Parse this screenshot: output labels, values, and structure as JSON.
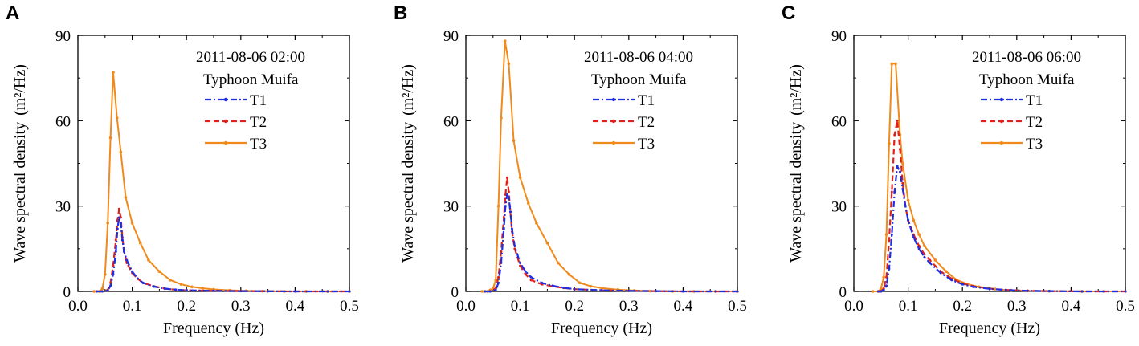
{
  "chart_data": [
    {
      "type": "line",
      "panel": "A",
      "annotation_lines": [
        "2011-08-06 02:00",
        "Typhoon Muifa"
      ],
      "xlabel": "Frequency (Hz)",
      "ylabel": "Wave spectral density",
      "ylabel_unit": "(m²/Hz)",
      "xlim": [
        0,
        0.5
      ],
      "ylim": [
        0,
        90
      ],
      "xticks": [
        0.0,
        0.1,
        0.2,
        0.3,
        0.4,
        0.5
      ],
      "xtick_labels": [
        "0.0",
        "0.1",
        "0.2",
        "0.3",
        "0.4",
        "0.5"
      ],
      "yticks": [
        0,
        30,
        60,
        90
      ],
      "ytick_labels": [
        "0",
        "30",
        "60",
        "90"
      ],
      "legend": [
        "T1",
        "T2",
        "T3"
      ],
      "series": [
        {
          "name": "T1",
          "color": "#1f2fe0",
          "style": "dashdot",
          "x": [
            0.035,
            0.045,
            0.055,
            0.06,
            0.065,
            0.07,
            0.073,
            0.076,
            0.079,
            0.082,
            0.085,
            0.09,
            0.1,
            0.11,
            0.12,
            0.14,
            0.16,
            0.18,
            0.2,
            0.25,
            0.3,
            0.35,
            0.4,
            0.46,
            0.5
          ],
          "values": [
            0,
            0,
            0.3,
            2,
            6,
            14,
            22,
            26,
            24,
            18,
            14,
            11,
            7,
            4.5,
            3,
            1.7,
            1,
            0.6,
            0.4,
            0.2,
            0.1,
            0.05,
            0,
            0,
            0
          ]
        },
        {
          "name": "T2",
          "color": "#e0201a",
          "style": "dashed",
          "x": [
            0.035,
            0.045,
            0.055,
            0.06,
            0.065,
            0.07,
            0.073,
            0.076,
            0.079,
            0.082,
            0.085,
            0.09,
            0.1,
            0.11,
            0.12,
            0.14,
            0.16,
            0.18,
            0.2,
            0.25,
            0.3,
            0.35,
            0.4,
            0.46,
            0.5
          ],
          "values": [
            0,
            0,
            0.5,
            3,
            9,
            18,
            25,
            29,
            26,
            19,
            14,
            10,
            6.5,
            4.5,
            3,
            1.8,
            1,
            0.6,
            0.4,
            0.2,
            0.1,
            0.05,
            0,
            0,
            0
          ]
        },
        {
          "name": "T3",
          "color": "#f08a1c",
          "style": "solid-dot",
          "x": [
            0.03,
            0.04,
            0.045,
            0.05,
            0.055,
            0.06,
            0.065,
            0.072,
            0.079,
            0.088,
            0.1,
            0.115,
            0.13,
            0.15,
            0.17,
            0.19,
            0.21,
            0.23,
            0.25,
            0.28,
            0.31,
            0.34,
            0.38,
            0.42,
            0.46,
            0.5
          ],
          "values": [
            0,
            0,
            1,
            6,
            24,
            54,
            77,
            61,
            49,
            33,
            24,
            17,
            11,
            7,
            4,
            2.5,
            1.6,
            1.1,
            0.7,
            0.4,
            0.2,
            0.1,
            0,
            0,
            0,
            0
          ]
        }
      ]
    },
    {
      "type": "line",
      "panel": "B",
      "annotation_lines": [
        "2011-08-06 04:00",
        "Typhoon Muifa"
      ],
      "xlabel": "Frequency (Hz)",
      "ylabel": "Wave spectral density",
      "ylabel_unit": "(m²/Hz)",
      "xlim": [
        0,
        0.5
      ],
      "ylim": [
        0,
        90
      ],
      "xticks": [
        0.0,
        0.1,
        0.2,
        0.3,
        0.4,
        0.5
      ],
      "xtick_labels": [
        "0.0",
        "0.1",
        "0.2",
        "0.3",
        "0.4",
        "0.5"
      ],
      "yticks": [
        0,
        30,
        60,
        90
      ],
      "ytick_labels": [
        "0",
        "30",
        "60",
        "90"
      ],
      "legend": [
        "T1",
        "T2",
        "T3"
      ],
      "series": [
        {
          "name": "T1",
          "color": "#1f2fe0",
          "style": "dashdot",
          "x": [
            0.035,
            0.045,
            0.055,
            0.06,
            0.065,
            0.07,
            0.073,
            0.076,
            0.079,
            0.082,
            0.085,
            0.09,
            0.1,
            0.11,
            0.12,
            0.14,
            0.16,
            0.18,
            0.2,
            0.25,
            0.3,
            0.35,
            0.4,
            0.46,
            0.5
          ],
          "values": [
            0,
            0,
            0.5,
            3,
            10,
            22,
            30,
            34,
            33,
            28,
            22,
            16,
            10,
            7,
            5,
            3,
            2,
            1.3,
            0.8,
            0.4,
            0.2,
            0.1,
            0,
            0,
            0
          ]
        },
        {
          "name": "T2",
          "color": "#e0201a",
          "style": "dashed",
          "x": [
            0.035,
            0.045,
            0.055,
            0.06,
            0.065,
            0.07,
            0.073,
            0.076,
            0.079,
            0.082,
            0.085,
            0.09,
            0.1,
            0.11,
            0.12,
            0.14,
            0.16,
            0.18,
            0.2,
            0.25,
            0.3,
            0.35,
            0.4,
            0.46,
            0.5
          ],
          "values": [
            0,
            0,
            1,
            5,
            14,
            26,
            34,
            40,
            35,
            28,
            21,
            15,
            9,
            6,
            4,
            2.5,
            1.8,
            1.2,
            0.8,
            0.4,
            0.2,
            0.1,
            0,
            0,
            0
          ]
        },
        {
          "name": "T3",
          "color": "#f08a1c",
          "style": "solid-dot",
          "x": [
            0.03,
            0.04,
            0.045,
            0.05,
            0.055,
            0.06,
            0.065,
            0.072,
            0.079,
            0.088,
            0.1,
            0.115,
            0.13,
            0.15,
            0.17,
            0.19,
            0.21,
            0.23,
            0.25,
            0.28,
            0.31,
            0.34,
            0.38,
            0.42,
            0.46,
            0.5
          ],
          "values": [
            0,
            0,
            0.5,
            1,
            4,
            30,
            61,
            88,
            80,
            53,
            40,
            31,
            24,
            17,
            10,
            6,
            3,
            1.8,
            1.2,
            0.6,
            0.3,
            0.1,
            0,
            0,
            0,
            0
          ]
        }
      ]
    },
    {
      "type": "line",
      "panel": "C",
      "annotation_lines": [
        "2011-08-06 06:00",
        "Typhoon Muifa"
      ],
      "xlabel": "Frequency (Hz)",
      "ylabel": "Wave spectral density",
      "ylabel_unit": "(m²/Hz)",
      "xlim": [
        0,
        0.5
      ],
      "ylim": [
        0,
        90
      ],
      "xticks": [
        0.0,
        0.1,
        0.2,
        0.3,
        0.4,
        0.5
      ],
      "xtick_labels": [
        "0.0",
        "0.1",
        "0.2",
        "0.3",
        "0.4",
        "0.5"
      ],
      "yticks": [
        0,
        30,
        60,
        90
      ],
      "ytick_labels": [
        "0",
        "30",
        "60",
        "90"
      ],
      "legend": [
        "T1",
        "T2",
        "T3"
      ],
      "series": [
        {
          "name": "T1",
          "color": "#1f2fe0",
          "style": "dashdot",
          "x": [
            0.045,
            0.05,
            0.055,
            0.06,
            0.065,
            0.07,
            0.075,
            0.08,
            0.085,
            0.09,
            0.095,
            0.1,
            0.11,
            0.12,
            0.13,
            0.14,
            0.16,
            0.18,
            0.2,
            0.22,
            0.25,
            0.28,
            0.32,
            0.36,
            0.42,
            0.5
          ],
          "values": [
            0,
            0,
            0.5,
            2,
            8,
            20,
            35,
            44,
            42,
            36,
            30,
            25,
            19,
            15,
            12,
            10,
            6.5,
            4,
            2.5,
            1.6,
            0.9,
            0.5,
            0.2,
            0.1,
            0,
            0
          ]
        },
        {
          "name": "T2",
          "color": "#e0201a",
          "style": "dashed",
          "x": [
            0.045,
            0.05,
            0.055,
            0.06,
            0.065,
            0.07,
            0.075,
            0.08,
            0.085,
            0.09,
            0.095,
            0.1,
            0.11,
            0.12,
            0.13,
            0.14,
            0.16,
            0.18,
            0.2,
            0.22,
            0.25,
            0.28,
            0.32,
            0.36,
            0.42,
            0.5
          ],
          "values": [
            0,
            0,
            1,
            5,
            18,
            35,
            55,
            60,
            50,
            38,
            30,
            25,
            20,
            16,
            13,
            11,
            7,
            4.5,
            2.8,
            1.8,
            1,
            0.5,
            0.2,
            0.1,
            0,
            0
          ]
        },
        {
          "name": "T3",
          "color": "#f08a1c",
          "style": "solid-dot",
          "x": [
            0.035,
            0.045,
            0.05,
            0.055,
            0.06,
            0.065,
            0.07,
            0.077,
            0.085,
            0.09,
            0.1,
            0.11,
            0.12,
            0.13,
            0.15,
            0.17,
            0.19,
            0.21,
            0.23,
            0.26,
            0.29,
            0.32,
            0.36,
            0.42,
            0.46,
            0.5
          ],
          "values": [
            0,
            0,
            1,
            5,
            20,
            52,
            80,
            80,
            55,
            45,
            32,
            25,
            20,
            16,
            11,
            7,
            4,
            2.5,
            1.6,
            0.8,
            0.4,
            0.2,
            0.1,
            0,
            0,
            0
          ]
        }
      ]
    }
  ]
}
